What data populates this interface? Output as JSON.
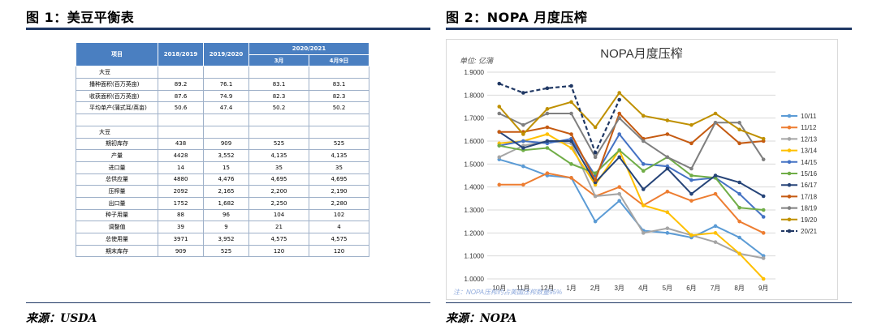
{
  "fig1": {
    "title": "图 1：美豆平衡表",
    "source": "来源：USDA",
    "header": {
      "item": "项目",
      "y1": "2018/2019",
      "y2": "2019/2020",
      "y3": "2020/2021",
      "sub1": "3月",
      "sub2": "4月9日"
    },
    "rows": [
      {
        "label": "大豆",
        "cells": [
          "",
          "",
          "",
          ""
        ],
        "style": "cat"
      },
      {
        "label": "播种面积(百万英亩)",
        "cells": [
          "89.2",
          "76.1",
          "83.1",
          "83.1"
        ],
        "style": ""
      },
      {
        "label": "收获面积(百万英亩)",
        "cells": [
          "87.6",
          "74.9",
          "82.3",
          "82.3"
        ],
        "style": ""
      },
      {
        "label": "平均单产(蒲式耳/英亩)",
        "cells": [
          "50.6",
          "47.4",
          "50.2",
          "50.2"
        ],
        "style": ""
      },
      {
        "label": "",
        "cells": [
          "",
          "",
          "",
          ""
        ],
        "style": "blank"
      },
      {
        "label": "大豆",
        "cells": [
          "",
          "",
          "",
          ""
        ],
        "style": "cat"
      },
      {
        "label": "期初库存",
        "cells": [
          "438",
          "909",
          "525",
          "525"
        ],
        "style": "center"
      },
      {
        "label": "产量",
        "cells": [
          "4428",
          "3,552",
          "4,135",
          "4,135"
        ],
        "style": "center"
      },
      {
        "label": "进口量",
        "cells": [
          "14",
          "15",
          "35",
          "35"
        ],
        "style": "center"
      },
      {
        "label": "总供应量",
        "cells": [
          "4880",
          "4,476",
          "4,695",
          "4,695"
        ],
        "style": "center"
      },
      {
        "label": "压榨量",
        "cells": [
          "2092",
          "2,165",
          "2,200",
          "2,190"
        ],
        "style": "center"
      },
      {
        "label": "出口量",
        "cells": [
          "1752",
          "1,682",
          "2,250",
          "2,280"
        ],
        "style": "center"
      },
      {
        "label": "种子用量",
        "cells": [
          "88",
          "96",
          "104",
          "102"
        ],
        "style": "center"
      },
      {
        "label": "调整值",
        "cells": [
          "39",
          "9",
          "21",
          "4"
        ],
        "style": "center"
      },
      {
        "label": "总使用量",
        "cells": [
          "3971",
          "3,952",
          "4,575",
          "4,575"
        ],
        "style": "center"
      },
      {
        "label": "期末库存",
        "cells": [
          "909",
          "525",
          "120",
          "120"
        ],
        "style": "center"
      }
    ]
  },
  "fig2": {
    "title": "图 2：NOPA 月度压榨",
    "source": "来源：NOPA"
  },
  "chart_data": {
    "type": "line",
    "title": "NOPA月度压榨",
    "unit_label": "单位: 亿蒲",
    "note": "注：NOPA压榨约占美国压榨数量95%",
    "categories": [
      "10月",
      "11月",
      "12月",
      "1月",
      "2月",
      "3月",
      "4月",
      "5月",
      "6月",
      "7月",
      "8月",
      "9月"
    ],
    "ylim": [
      1.0,
      1.9
    ],
    "yticks": [
      "1.0000",
      "1.1000",
      "1.2000",
      "1.3000",
      "1.4000",
      "1.5000",
      "1.6000",
      "1.7000",
      "1.8000",
      "1.9000"
    ],
    "legend_position": "right",
    "series": [
      {
        "name": "10/11",
        "color": "#5b9bd5",
        "dashed": false,
        "values": [
          1.52,
          1.49,
          1.45,
          1.44,
          1.25,
          1.34,
          1.21,
          1.2,
          1.18,
          1.23,
          1.18,
          1.1
        ]
      },
      {
        "name": "11/12",
        "color": "#ed7d31",
        "dashed": false,
        "values": [
          1.41,
          1.41,
          1.46,
          1.44,
          1.36,
          1.4,
          1.32,
          1.38,
          1.34,
          1.37,
          1.25,
          1.2
        ]
      },
      {
        "name": "12/13",
        "color": "#a5a5a5",
        "dashed": false,
        "values": [
          1.53,
          1.58,
          1.6,
          1.59,
          1.36,
          1.37,
          1.2,
          1.22,
          1.19,
          1.16,
          1.11,
          1.09
        ]
      },
      {
        "name": "13/14",
        "color": "#ffc000",
        "dashed": false,
        "values": [
          1.59,
          1.6,
          1.63,
          1.57,
          1.41,
          1.56,
          1.32,
          1.29,
          1.19,
          1.2,
          1.11,
          1.0
        ]
      },
      {
        "name": "14/15",
        "color": "#4472c4",
        "dashed": false,
        "values": [
          1.58,
          1.6,
          1.59,
          1.61,
          1.45,
          1.63,
          1.5,
          1.49,
          1.43,
          1.44,
          1.37,
          1.27
        ]
      },
      {
        "name": "15/16",
        "color": "#70ad47",
        "dashed": false,
        "values": [
          1.58,
          1.56,
          1.57,
          1.5,
          1.46,
          1.56,
          1.47,
          1.53,
          1.45,
          1.44,
          1.31,
          1.3
        ]
      },
      {
        "name": "16/17",
        "color": "#264478",
        "dashed": false,
        "values": [
          1.64,
          1.57,
          1.6,
          1.6,
          1.42,
          1.53,
          1.39,
          1.48,
          1.37,
          1.45,
          1.42,
          1.36
        ]
      },
      {
        "name": "17/18",
        "color": "#c55a11",
        "dashed": false,
        "values": [
          1.64,
          1.64,
          1.66,
          1.63,
          1.43,
          1.72,
          1.61,
          1.63,
          1.59,
          1.68,
          1.59,
          1.6
        ]
      },
      {
        "name": "18/19",
        "color": "#7f7f7f",
        "dashed": false,
        "values": [
          1.72,
          1.67,
          1.72,
          1.72,
          1.53,
          1.7,
          1.6,
          1.53,
          1.48,
          1.68,
          1.68,
          1.52
        ]
      },
      {
        "name": "19/20",
        "color": "#bf9000",
        "dashed": false,
        "values": [
          1.75,
          1.63,
          1.74,
          1.77,
          1.66,
          1.81,
          1.71,
          1.69,
          1.67,
          1.72,
          1.65,
          1.61
        ]
      },
      {
        "name": "20/21",
        "color": "#203864",
        "dashed": true,
        "values": [
          1.85,
          1.81,
          1.83,
          1.84,
          1.55,
          1.78,
          null,
          null,
          null,
          null,
          null,
          null
        ]
      }
    ]
  }
}
